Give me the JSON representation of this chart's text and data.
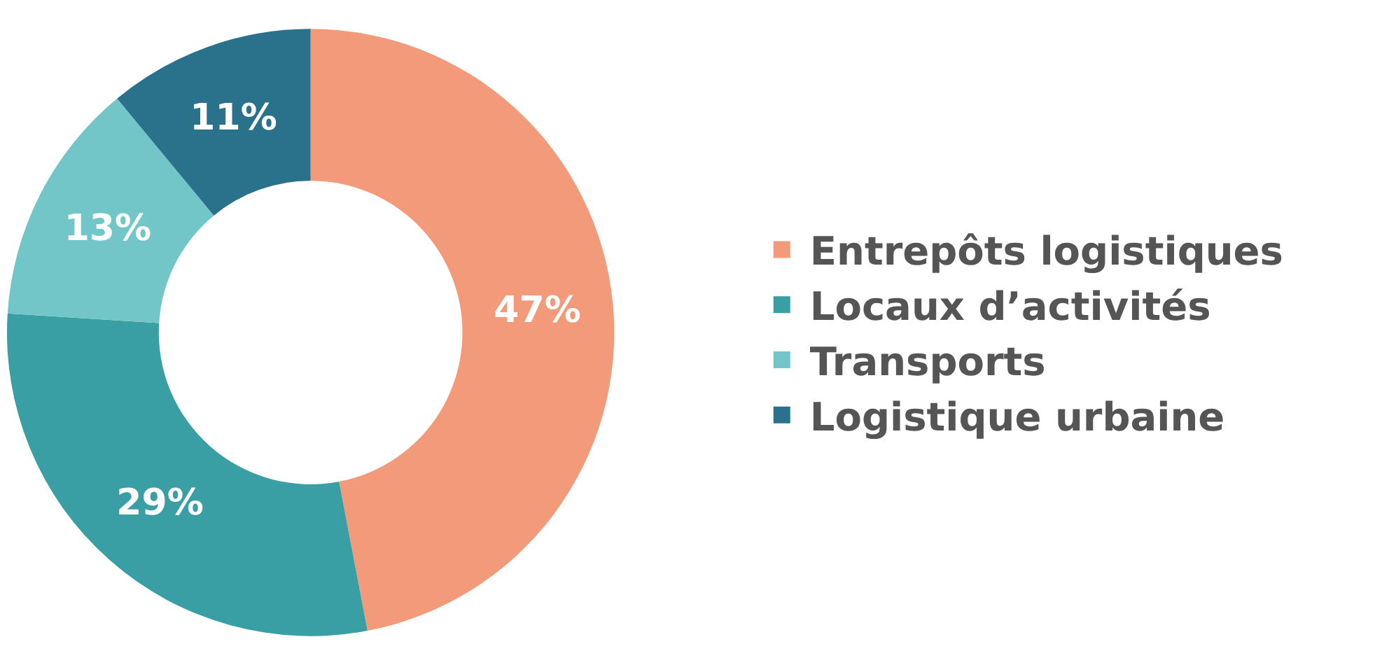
{
  "chart_data": {
    "type": "donut",
    "categories": [
      "Entrepôts logistiques",
      "Locaux d’activités",
      "Transports",
      "Logistique urbaine"
    ],
    "values": [
      47,
      29,
      13,
      11
    ],
    "colors": [
      "#f29a79",
      "#3a9ea5",
      "#72c6c7",
      "#2a718b"
    ],
    "value_labels": [
      "47%",
      "29%",
      "13%",
      "11%"
    ],
    "legend": "right"
  }
}
